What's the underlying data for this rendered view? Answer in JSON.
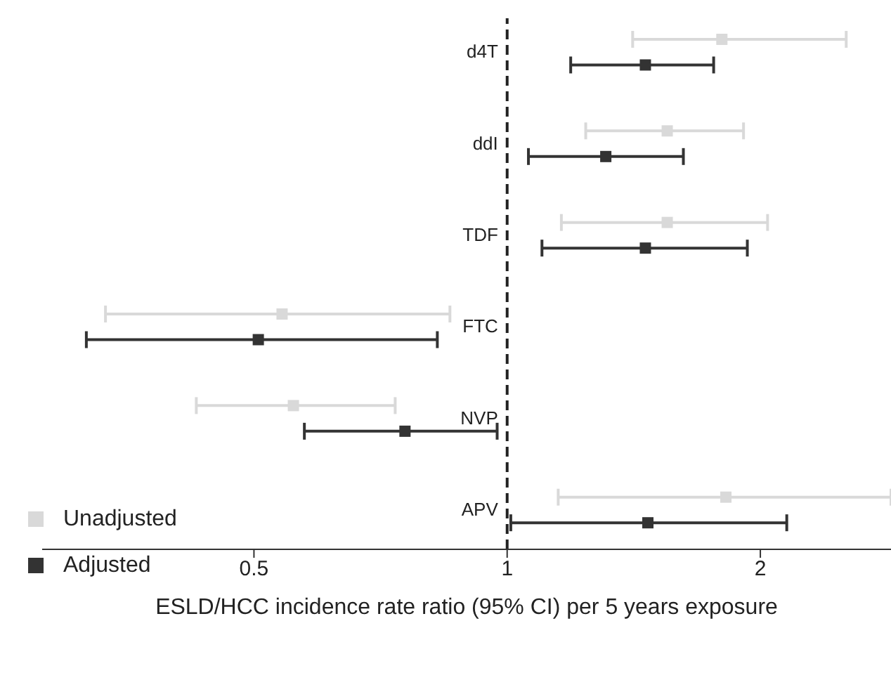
{
  "chart_data": {
    "type": "scatter",
    "orientation": "horizontal",
    "categories": [
      "d4T",
      "ddI",
      "TDF",
      "FTC",
      "NVP",
      "APV"
    ],
    "series": [
      {
        "name": "Unadjusted",
        "color": "#d9d9d9",
        "values": [
          1.8,
          1.55,
          1.55,
          0.54,
          0.557,
          1.82
        ],
        "errors": [
          [
            1.41,
            2.53
          ],
          [
            1.24,
            1.91
          ],
          [
            1.16,
            2.04
          ],
          [
            0.333,
            0.855
          ],
          [
            0.427,
            0.736
          ],
          [
            1.15,
            2.86
          ]
        ]
      },
      {
        "name": "Adjusted",
        "color": "#333333",
        "values": [
          1.46,
          1.31,
          1.46,
          0.506,
          0.756,
          1.47
        ],
        "errors": [
          [
            1.19,
            1.76
          ],
          [
            1.06,
            1.62
          ],
          [
            1.1,
            1.93
          ],
          [
            0.316,
            0.826
          ],
          [
            0.574,
            0.973
          ],
          [
            1.01,
            2.15
          ]
        ]
      }
    ],
    "xlabel": "ESLD/HCC incidence rate ratio (95% CI) per 5 years exposure",
    "log": "x",
    "xlim": [
      0.28,
      2.86
    ],
    "xticks": [
      0.5,
      1,
      2
    ],
    "ref_lines": [
      {
        "axis": "x",
        "value": 1,
        "line_style": "dashed",
        "color": "#222222"
      }
    ],
    "marker": "square",
    "legend": "bottom left",
    "grid": false
  }
}
